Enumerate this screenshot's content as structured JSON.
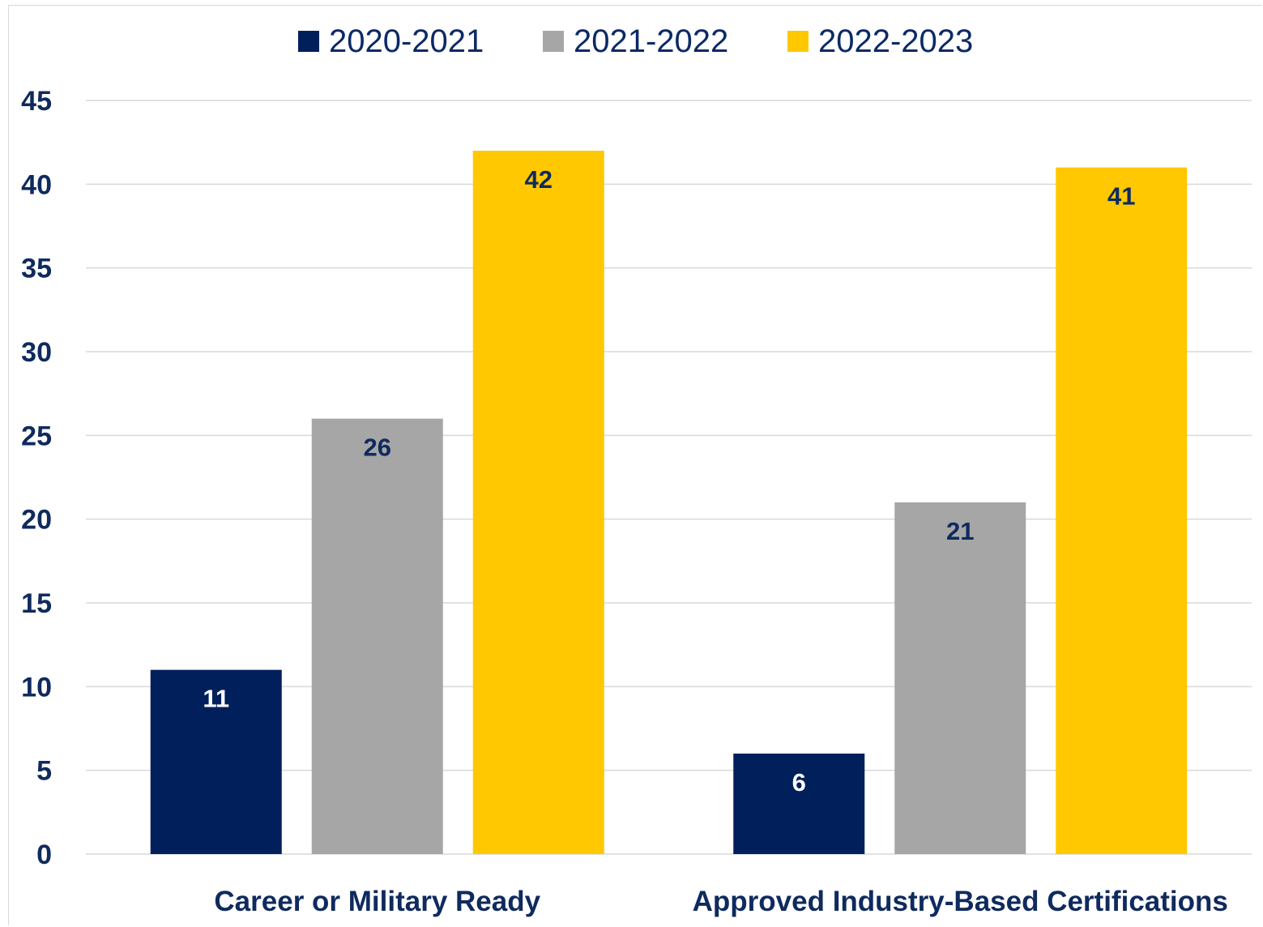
{
  "chart_data": {
    "type": "bar",
    "categories": [
      "Career or Military Ready",
      "Approved Industry-Based Certifications"
    ],
    "series": [
      {
        "name": "2020-2021",
        "values": [
          11,
          6
        ],
        "color": "#001f5b",
        "label_color": "#ffffff"
      },
      {
        "name": "2021-2022",
        "values": [
          26,
          21
        ],
        "color": "#a6a6a6",
        "label_color": "#0f2a5e"
      },
      {
        "name": "2022-2023",
        "values": [
          42,
          41
        ],
        "color": "#ffc800",
        "label_color": "#0f2a5e"
      }
    ],
    "ylim": [
      0,
      45
    ],
    "y_ticks": [
      "0",
      "5",
      "10",
      "15",
      "20",
      "25",
      "30",
      "35",
      "40",
      "45"
    ],
    "grid": true,
    "legend_position": "top-center",
    "data_labels": true,
    "grid_color": "#d9d9d9",
    "axis_text_color": "#0f2a5e"
  }
}
